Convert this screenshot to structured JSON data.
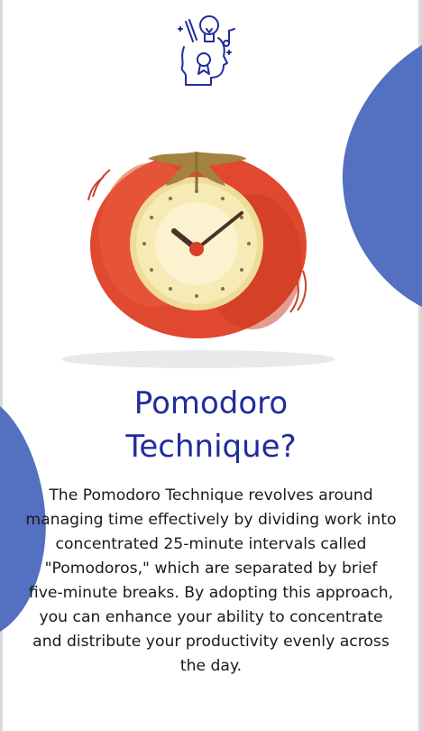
{
  "article": {
    "title_line1": "Pomodoro",
    "title_line2": "Technique?",
    "body": "The Pomodoro Technique revolves around managing time effectively by dividing work into concentrated 25-minute intervals called \"Pomodoros,\" which are separated by brief five-minute breaks. By adopting this approach, you can enhance your ability to concentrate and distribute your productivity evenly across the day."
  },
  "colors": {
    "accent_blue": "#5470c0",
    "title_blue": "#1f2d9b",
    "tomato_red": "#e0482f",
    "clock_face": "#f6ebb5"
  },
  "icons": {
    "logo": "creative-head-icon",
    "illustration": "tomato-clock-icon"
  }
}
